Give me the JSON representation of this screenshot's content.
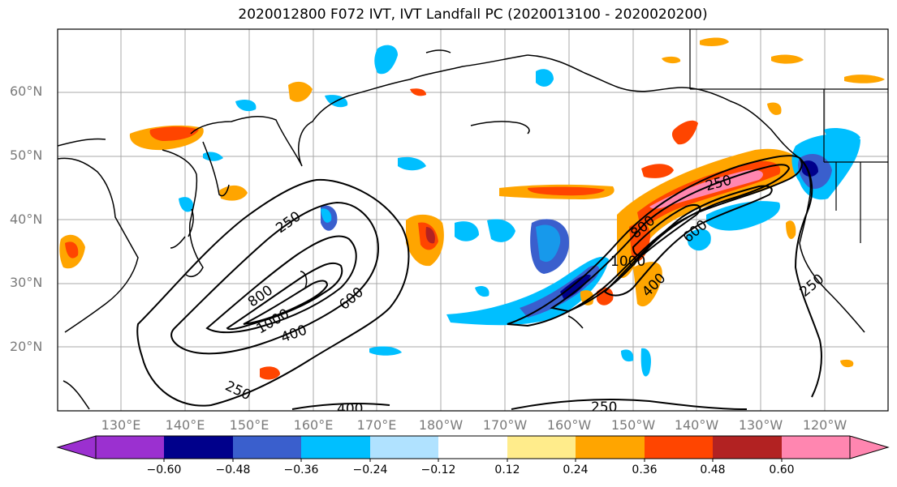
{
  "title": "2020012800 F072 IVT, IVT Landfall PC (2020013100 - 2020020200)",
  "lat_labels": [
    "60°N",
    "50°N",
    "40°N",
    "30°N",
    "20°N"
  ],
  "lon_labels": [
    "130°E",
    "140°E",
    "150°E",
    "160°E",
    "170°E",
    "180°W",
    "170°W",
    "160°W",
    "150°W",
    "140°W",
    "130°W",
    "120°W"
  ],
  "contour_labels": [
    "250",
    "800",
    "1000",
    "400",
    "600",
    "250",
    "400",
    "250",
    "600",
    "800",
    "1000",
    "400",
    "250",
    "250"
  ],
  "colorbar": {
    "colors": [
      "#9b30d0",
      "#00008b",
      "#3a5fcd",
      "#00bfff",
      "#b0e2ff",
      "#ffffff",
      "#ffec8b",
      "#ffa500",
      "#ff4500",
      "#b22222",
      "#ff86b0"
    ],
    "tick_labels": [
      "−0.60",
      "−0.48",
      "−0.36",
      "−0.24",
      "−0.12",
      "0.12",
      "0.24",
      "0.36",
      "0.48",
      "0.60"
    ]
  }
}
